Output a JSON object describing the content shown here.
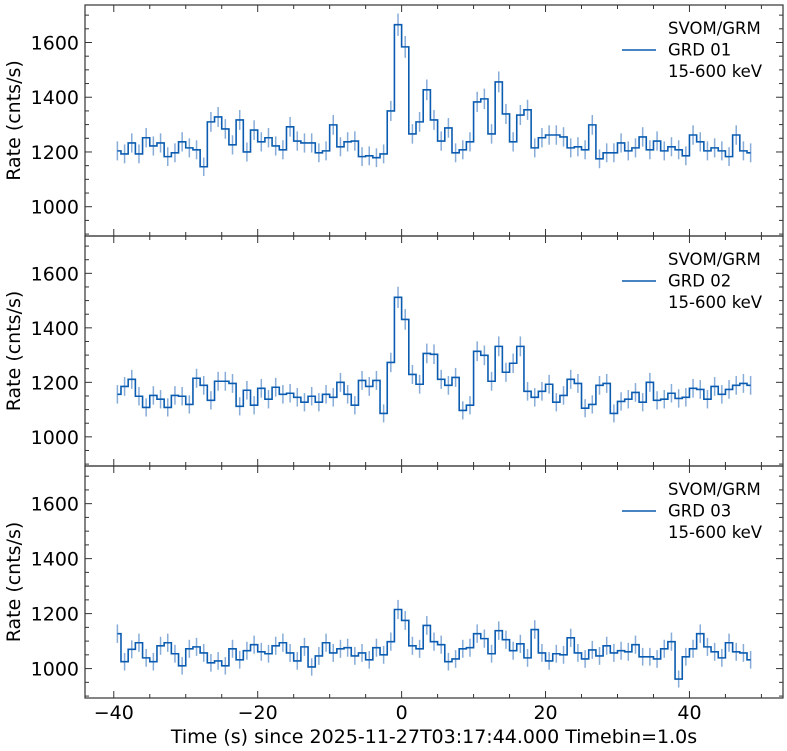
{
  "chart_data": {
    "type": "line",
    "style": "step",
    "xlabel": "Time (s) since 2025-11-27T03:17:44.000 Timebin=1.0s",
    "ylabel": "Rate (cnts/s)",
    "xlim": [
      -44,
      53
    ],
    "ylim": [
      893,
      1737
    ],
    "xticks": [
      -40,
      -20,
      0,
      20,
      40
    ],
    "xtick_labels": [
      "−40",
      "−20",
      "0",
      "20",
      "40"
    ],
    "yticks": [
      1000,
      1200,
      1400,
      1600
    ],
    "ytick_labels": [
      "1000",
      "1200",
      "1400",
      "1600"
    ],
    "grid": false,
    "line_color": "#0b5cb0",
    "errorbar_color": "#7aa3d4",
    "x_start": -39.5,
    "x_step": 1.0,
    "panels": [
      {
        "legend": {
          "position": "top-right",
          "lines": [
            "SVOM/GRM",
            "GRD 01",
            "15-600 keV"
          ]
        },
        "values": [
          1204,
          1193,
          1233,
          1193,
          1252,
          1222,
          1233,
          1183,
          1197,
          1237,
          1215,
          1208,
          1146,
          1310,
          1328,
          1284,
          1226,
          1317,
          1200,
          1280,
          1237,
          1252,
          1222,
          1208,
          1292,
          1240,
          1233,
          1233,
          1197,
          1204,
          1299,
          1219,
          1237,
          1240,
          1183,
          1186,
          1179,
          1193,
          1350,
          1665,
          1584,
          1266,
          1310,
          1427,
          1317,
          1240,
          1288,
          1197,
          1208,
          1237,
          1383,
          1394,
          1266,
          1456,
          1339,
          1237,
          1335,
          1354,
          1215,
          1252,
          1262,
          1262,
          1255,
          1215,
          1219,
          1208,
          1299,
          1175,
          1197,
          1197,
          1233,
          1204,
          1215,
          1255,
          1208,
          1240,
          1204,
          1219,
          1208,
          1186,
          1262,
          1237,
          1204,
          1215,
          1204,
          1183,
          1262,
          1204,
          1197
        ]
      },
      {
        "legend": {
          "position": "top-right",
          "lines": [
            "SVOM/GRM",
            "GRD 02",
            "15-600 keV"
          ]
        },
        "values": [
          1156,
          1185,
          1211,
          1149,
          1108,
          1152,
          1138,
          1108,
          1152,
          1149,
          1119,
          1215,
          1189,
          1134,
          1204,
          1204,
          1196,
          1112,
          1171,
          1116,
          1178,
          1138,
          1182,
          1156,
          1160,
          1145,
          1127,
          1149,
          1127,
          1156,
          1145,
          1200,
          1156,
          1116,
          1207,
          1185,
          1207,
          1086,
          1273,
          1512,
          1431,
          1229,
          1193,
          1306,
          1303,
          1211,
          1189,
          1218,
          1097,
          1116,
          1314,
          1299,
          1204,
          1332,
          1237,
          1270,
          1332,
          1167,
          1145,
          1167,
          1193,
          1127,
          1152,
          1211,
          1196,
          1105,
          1119,
          1189,
          1196,
          1086,
          1130,
          1138,
          1163,
          1127,
          1200,
          1134,
          1138,
          1160,
          1141,
          1145,
          1178,
          1174,
          1138,
          1185,
          1156,
          1174,
          1189,
          1196,
          1189
        ]
      },
      {
        "legend": {
          "position": "top-right",
          "lines": [
            "SVOM/GRM",
            "GRD 03",
            "15-600 keV"
          ]
        },
        "values": [
          1127,
          1025,
          1070,
          1094,
          1039,
          1025,
          1083,
          1094,
          1054,
          1010,
          1072,
          1079,
          1057,
          1021,
          1028,
          1010,
          1072,
          1032,
          1065,
          1087,
          1061,
          1054,
          1083,
          1094,
          1057,
          1028,
          1079,
          1006,
          1046,
          1094,
          1057,
          1072,
          1076,
          1046,
          1057,
          1032,
          1076,
          1050,
          1098,
          1215,
          1175,
          1083,
          1072,
          1157,
          1098,
          1087,
          1025,
          1035,
          1072,
          1076,
          1127,
          1109,
          1054,
          1138,
          1105,
          1065,
          1090,
          1039,
          1142,
          1057,
          1028,
          1054,
          1050,
          1112,
          1057,
          1035,
          1068,
          1046,
          1083,
          1057,
          1065,
          1061,
          1087,
          1043,
          1043,
          1035,
          1072,
          1098,
          962,
          1043,
          1072,
          1127,
          1079,
          1061,
          1039,
          1094,
          1061,
          1057,
          1032
        ]
      }
    ]
  }
}
